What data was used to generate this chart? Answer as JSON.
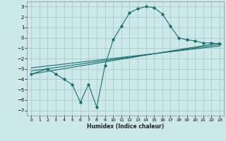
{
  "xlabel": "Humidex (Indice chaleur)",
  "bg_color": "#cce8e8",
  "grid_color": "#aacccc",
  "line_color": "#1a7070",
  "xlim": [
    -0.5,
    23.5
  ],
  "ylim": [
    -7.5,
    3.5
  ],
  "yticks": [
    -7,
    -6,
    -5,
    -4,
    -3,
    -2,
    -1,
    0,
    1,
    2,
    3
  ],
  "xticks": [
    0,
    1,
    2,
    3,
    4,
    5,
    6,
    7,
    8,
    9,
    10,
    11,
    12,
    13,
    14,
    15,
    16,
    17,
    18,
    19,
    20,
    21,
    22,
    23
  ],
  "main_x": [
    0,
    2,
    3,
    4,
    5,
    6,
    7,
    8,
    9,
    10,
    11,
    12,
    13,
    14,
    15,
    16,
    17,
    18,
    19,
    20,
    21,
    22,
    23
  ],
  "main_y": [
    -3.5,
    -3.0,
    -3.5,
    -4.0,
    -4.5,
    -6.2,
    -4.5,
    -6.7,
    -2.7,
    -0.2,
    1.1,
    2.4,
    2.8,
    3.0,
    2.9,
    2.3,
    1.1,
    0.0,
    -0.2,
    -0.3,
    -0.5,
    -0.5,
    -0.6
  ],
  "line1_x": [
    0,
    23
  ],
  "line1_y": [
    -3.5,
    -0.5
  ],
  "line2_x": [
    0,
    23
  ],
  "line2_y": [
    -3.2,
    -0.65
  ],
  "line3_x": [
    0,
    23
  ],
  "line3_y": [
    -2.9,
    -0.8
  ]
}
